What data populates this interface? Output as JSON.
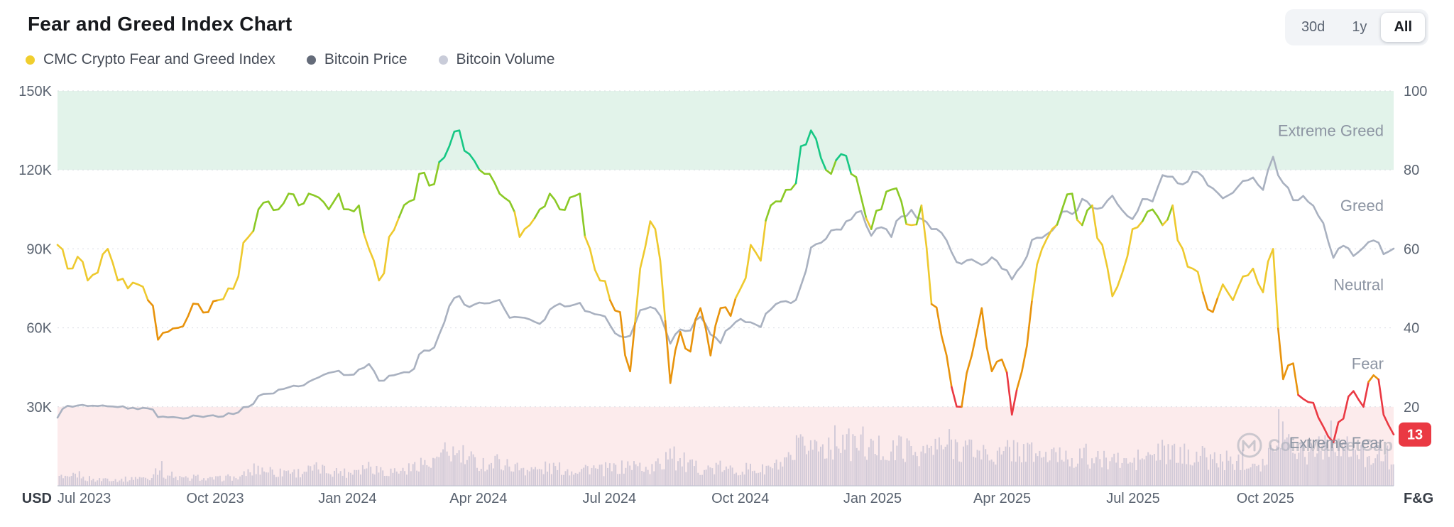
{
  "header": {
    "title": "Fear and Greed Index Chart",
    "range_buttons": [
      {
        "label": "30d",
        "active": false
      },
      {
        "label": "1y",
        "active": false
      },
      {
        "label": "All",
        "active": true
      }
    ]
  },
  "legend": {
    "items": [
      {
        "label": "CMC Crypto Fear and Greed Index",
        "color": "#f0ce2e"
      },
      {
        "label": "Bitcoin Price",
        "color": "#646b79"
      },
      {
        "label": "Bitcoin Volume",
        "color": "#c9ccd9"
      }
    ]
  },
  "chart_data": {
    "type": "line",
    "title": "Fear and Greed Index Chart",
    "grid": "horizontal-dotted",
    "legend_position": "top-left",
    "x_axis": {
      "labels": [
        "Jul 2023",
        "Oct 2023",
        "Jan 2024",
        "Apr 2024",
        "Jul 2024",
        "Oct 2024",
        "Jan 2025",
        "Apr 2025",
        "Jul 2025",
        "Oct 2025"
      ],
      "fractions": [
        0.02,
        0.118,
        0.217,
        0.315,
        0.413,
        0.511,
        0.61,
        0.707,
        0.805,
        0.904
      ]
    },
    "left_axis": {
      "unit": "USD",
      "ticks": [
        "150K",
        "120K",
        "90K",
        "60K",
        "30K"
      ],
      "tick_values": [
        150,
        120,
        90,
        60,
        30
      ],
      "range": [
        0,
        150
      ]
    },
    "right_axis": {
      "unit": "F&G",
      "ticks": [
        "100",
        "80",
        "60",
        "40",
        "20"
      ],
      "tick_values": [
        100,
        80,
        60,
        40,
        20
      ],
      "range": [
        0,
        100
      ]
    },
    "zones": [
      {
        "label": "Extreme Greed",
        "label_value": 90,
        "band_range": [
          80,
          100
        ],
        "band_color": "#e2f3ea"
      },
      {
        "label": "Greed",
        "label_value": 71
      },
      {
        "label": "Neutral",
        "label_value": 51
      },
      {
        "label": "Fear",
        "label_value": 31
      },
      {
        "label": "Extreme Fear",
        "label_value": 11,
        "band_range": [
          0,
          20
        ],
        "band_color": "#fcebec"
      }
    ],
    "series": [
      {
        "name": "CMC Crypto Fear and Greed Index",
        "axis": "right",
        "style": "line",
        "color_scale": [
          {
            "max": 24,
            "color": "#ea3943",
            "zone": "extreme fear"
          },
          {
            "max": 47,
            "color": "#e8930c",
            "zone": "fear"
          },
          {
            "max": 67,
            "color": "#eec92e",
            "zone": "neutral"
          },
          {
            "max": 81,
            "color": "#8bc926",
            "zone": "greed"
          },
          {
            "max": 100,
            "color": "#16c784",
            "zone": "extreme greed"
          }
        ],
        "values": [
          61,
          55,
          58,
          52,
          54,
          60,
          52,
          50,
          51,
          47,
          37,
          39,
          40,
          43,
          46,
          44,
          47,
          50,
          53,
          63,
          70,
          72,
          70,
          74,
          71,
          74,
          73,
          70,
          74,
          70,
          71,
          60,
          52,
          63,
          68,
          72,
          79,
          76,
          82,
          86,
          90,
          84,
          80,
          79,
          74,
          72,
          63,
          66,
          70,
          74,
          70,
          73,
          74,
          60,
          52,
          47,
          44,
          29,
          55,
          67,
          57,
          26,
          39,
          34,
          45,
          33,
          45,
          43,
          50,
          61,
          57,
          71,
          72,
          75,
          86,
          90,
          83,
          79,
          84,
          79,
          73,
          65,
          70,
          75,
          72,
          66,
          71,
          46,
          38,
          25,
          20,
          33,
          45,
          29,
          32,
          18,
          29,
          47,
          60,
          65,
          70,
          74,
          66,
          71,
          61,
          48,
          54,
          65,
          67,
          70,
          66,
          71,
          60,
          55,
          49,
          44,
          51,
          47,
          53,
          55,
          49,
          60,
          27,
          31,
          22,
          21,
          15,
          11,
          17,
          24,
          20,
          28,
          18,
          13
        ]
      },
      {
        "name": "Bitcoin Price",
        "axis": "left",
        "style": "line",
        "color": "#a9b1c0",
        "values": [
          25.9,
          30.4,
          30.5,
          30.3,
          30.3,
          30.2,
          29.9,
          29.3,
          29.1,
          29.4,
          26.1,
          26.0,
          25.9,
          25.8,
          26.5,
          26.6,
          26.2,
          27.6,
          27.9,
          30.0,
          34.1,
          35.0,
          36.5,
          37.4,
          37.8,
          39.5,
          41.2,
          42.9,
          43.7,
          42.1,
          44.2,
          46.3,
          39.9,
          41.8,
          42.6,
          43.1,
          49.9,
          51.3,
          57.5,
          68.3,
          72.1,
          67.9,
          69.6,
          69.4,
          70.6,
          63.8,
          64.0,
          63.2,
          61.5,
          66.9,
          69.2,
          68.3,
          69.5,
          66.0,
          64.9,
          61.0,
          56.8,
          57.0,
          66.7,
          67.9,
          64.6,
          54.0,
          59.4,
          59.0,
          64.2,
          57.5,
          54.2,
          60.2,
          63.4,
          62.1,
          60.3,
          67.0,
          69.9,
          69.4,
          76.0,
          90.5,
          92.3,
          97.0,
          97.3,
          101.2,
          104.4,
          95.0,
          98.2,
          94.5,
          102.3,
          104.8,
          101.4,
          97.5,
          96.1,
          88.7,
          84.3,
          86.0,
          83.9,
          86.8,
          82.5,
          78.4,
          83.7,
          93.4,
          94.2,
          96.9,
          104.1,
          103.2,
          109.0,
          105.6,
          105.7,
          110.2,
          104.6,
          101.3,
          108.9,
          108.0,
          118.0,
          117.4,
          114.5,
          119.3,
          117.5,
          113.0,
          109.2,
          111.3,
          115.8,
          117.1,
          112.4,
          125.0,
          115.0,
          108.5,
          110.1,
          106.4,
          99.8,
          86.6,
          91.2,
          87.3,
          90.5,
          93.2,
          88.0,
          90.1
        ]
      },
      {
        "name": "Bitcoin Volume",
        "axis": "left",
        "style": "bar",
        "color": "#c8c3d4",
        "values_relative": [
          0.15,
          0.12,
          0.18,
          0.12,
          0.1,
          0.12,
          0.1,
          0.11,
          0.14,
          0.12,
          0.3,
          0.18,
          0.13,
          0.12,
          0.14,
          0.11,
          0.12,
          0.14,
          0.13,
          0.22,
          0.28,
          0.26,
          0.22,
          0.25,
          0.22,
          0.26,
          0.28,
          0.25,
          0.24,
          0.22,
          0.3,
          0.34,
          0.28,
          0.24,
          0.25,
          0.28,
          0.4,
          0.35,
          0.45,
          0.55,
          0.5,
          0.42,
          0.38,
          0.36,
          0.4,
          0.34,
          0.3,
          0.28,
          0.26,
          0.3,
          0.28,
          0.26,
          0.28,
          0.3,
          0.26,
          0.28,
          0.3,
          0.34,
          0.32,
          0.28,
          0.35,
          0.62,
          0.4,
          0.32,
          0.3,
          0.28,
          0.3,
          0.26,
          0.28,
          0.28,
          0.26,
          0.3,
          0.34,
          0.4,
          0.62,
          0.7,
          0.65,
          0.72,
          0.8,
          0.68,
          0.72,
          0.6,
          0.62,
          0.55,
          0.66,
          0.58,
          0.55,
          0.6,
          0.64,
          0.7,
          0.66,
          0.6,
          0.55,
          0.52,
          0.5,
          0.62,
          0.58,
          0.55,
          0.5,
          0.48,
          0.52,
          0.46,
          0.5,
          0.44,
          0.42,
          0.46,
          0.4,
          0.38,
          0.46,
          0.5,
          0.55,
          0.52,
          0.5,
          0.54,
          0.48,
          0.44,
          0.42,
          0.4,
          0.44,
          0.42,
          0.4,
          0.55,
          1.0,
          0.72,
          0.6,
          0.62,
          0.7,
          0.78,
          0.6,
          0.55,
          0.5,
          0.55,
          0.48,
          0.45
        ]
      }
    ],
    "current_value": {
      "label": "13",
      "value": 13,
      "color": "#ea3943"
    },
    "watermark": {
      "text": "CoinMarketCap"
    }
  }
}
